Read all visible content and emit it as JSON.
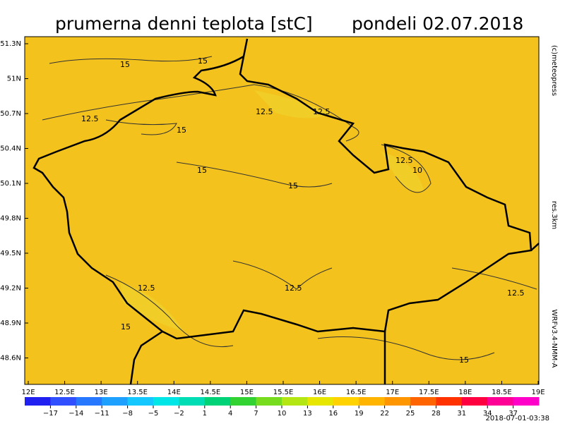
{
  "title": "prumerna denni teplota [stC]",
  "date": "pondeli 02.07.2018",
  "lat_labels": [
    "51.3N",
    "51N",
    "50.7N",
    "50.4N",
    "50.1N",
    "49.8N",
    "49.5N",
    "49.2N",
    "48.9N",
    "48.6N"
  ],
  "lon_labels": [
    "12E",
    "12.5E",
    "13E",
    "13.5E",
    "14E",
    "14.5E",
    "15E",
    "15.5E",
    "16E",
    "16.5E",
    "17E",
    "17.5E",
    "18E",
    "18.5E",
    "19E"
  ],
  "colorbar": {
    "range": [
      -20,
      40
    ],
    "ticks": [
      {
        "value": -17,
        "label": "−17"
      },
      {
        "value": -14,
        "label": "−14"
      },
      {
        "value": -11,
        "label": "−11"
      },
      {
        "value": -8,
        "label": "−8"
      },
      {
        "value": -5,
        "label": "−5"
      },
      {
        "value": -2,
        "label": "−2"
      },
      1,
      4,
      7,
      10,
      13,
      16,
      19,
      22,
      25,
      28,
      31,
      34,
      37
    ],
    "colors": [
      "#2020f0",
      "#3050ff",
      "#2878ff",
      "#1ea0ff",
      "#14c8ff",
      "#00e6e6",
      "#00dcb4",
      "#00d278",
      "#32d232",
      "#78dc1e",
      "#b4e614",
      "#e6e600",
      "#ffd200",
      "#ffb400",
      "#ff9600",
      "#ff6400",
      "#ff3200",
      "#ff0040",
      "#ff0096",
      "#ff00c8"
    ]
  },
  "side": {
    "copyright": "(c)meteopress",
    "resolution": "res.3km",
    "model": "WRFv3.4-NMM-A"
  },
  "timestamp": "2018-07-01-03:38",
  "contour_labels": [
    "15",
    "15",
    "12.5",
    "12.5",
    "12.5",
    "15",
    "15",
    "15",
    "12.5",
    "10",
    "12.5",
    "12.5",
    "15",
    "12.5",
    "15"
  ]
}
